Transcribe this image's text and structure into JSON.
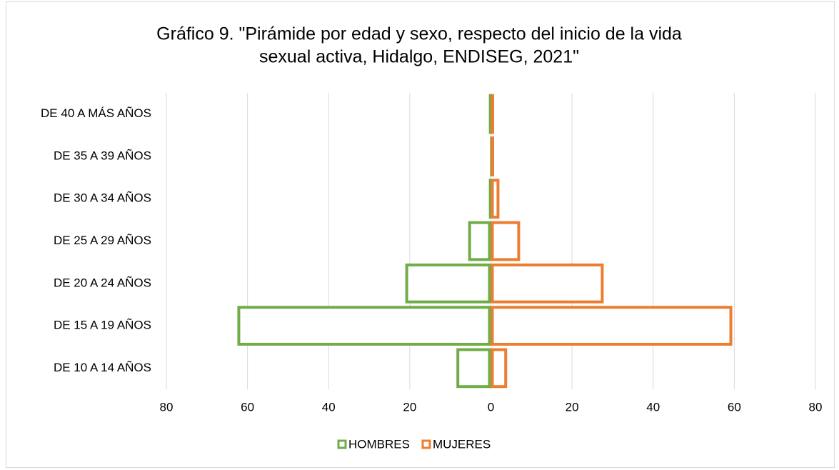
{
  "chart_data": {
    "type": "pyramid",
    "title": [
      "Gráfico 9. \"Pirámide por edad y sexo, respecto del inicio de la vida",
      "sexual activa, Hidalgo, ENDISEG, 2021\""
    ],
    "categories": [
      "DE 40 A MÁS AÑOS",
      "DE 35 A 39 AÑOS",
      "DE 30 A 34 AÑOS",
      "DE 25 A 29 AÑOS",
      "DE 20 A 24 AÑOS",
      "DE 15 A 19 AÑOS",
      "DE 10 A 14 AÑOS"
    ],
    "series": [
      {
        "name": "HOMBRES",
        "color": "#70ad47",
        "values": [
          -0.5,
          -0.2,
          -0.5,
          -5.6,
          -21.1,
          -62.5,
          -8.5
        ]
      },
      {
        "name": "MUJERES",
        "color": "#ed7d31",
        "values": [
          0.7,
          0.5,
          2.1,
          7.2,
          27.8,
          59.5,
          4
        ]
      }
    ],
    "xlim": [
      -80,
      80
    ],
    "xticks": [
      {
        "value": -80,
        "label": "80"
      },
      {
        "value": -60,
        "label": "60"
      },
      {
        "value": -40,
        "label": "40"
      },
      {
        "value": -20,
        "label": "20"
      },
      0,
      20,
      40,
      60,
      80
    ],
    "grid": true,
    "legend": "bottom"
  }
}
